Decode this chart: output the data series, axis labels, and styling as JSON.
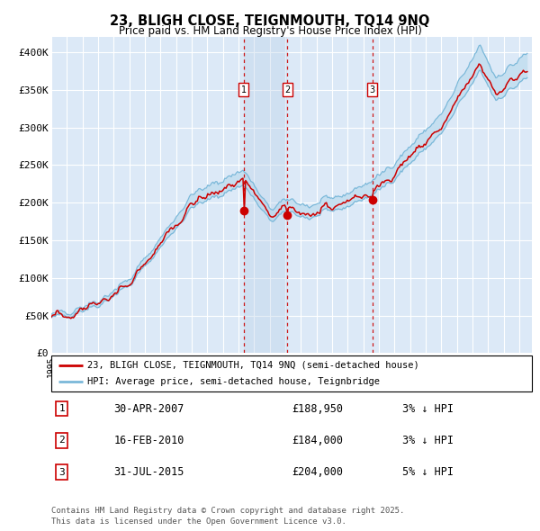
{
  "title1": "23, BLIGH CLOSE, TEIGNMOUTH, TQ14 9NQ",
  "title2": "Price paid vs. HM Land Registry's House Price Index (HPI)",
  "background_color": "#dce9f7",
  "grid_color": "#ffffff",
  "hpi_color": "#7ab8d9",
  "hpi_band_color": "#c5dff0",
  "price_color": "#cc0000",
  "ylim": [
    0,
    420000
  ],
  "yticks": [
    0,
    50000,
    100000,
    150000,
    200000,
    250000,
    300000,
    350000,
    400000
  ],
  "ytick_labels": [
    "£0",
    "£50K",
    "£100K",
    "£150K",
    "£200K",
    "£250K",
    "£300K",
    "£350K",
    "£400K"
  ],
  "sale_year_floats": [
    2007.33,
    2010.12,
    2015.58
  ],
  "sale_prices": [
    188950,
    184000,
    204000
  ],
  "sale_labels": [
    "1",
    "2",
    "3"
  ],
  "sale_date_strs": [
    "30-APR-2007",
    "16-FEB-2010",
    "31-JUL-2015"
  ],
  "sale_price_strs": [
    "£188,950",
    "£184,000",
    "£204,000"
  ],
  "sale_pct_strs": [
    "3% ↓ HPI",
    "3% ↓ HPI",
    "5% ↓ HPI"
  ],
  "legend_line1": "23, BLIGH CLOSE, TEIGNMOUTH, TQ14 9NQ (semi-detached house)",
  "legend_line2": "HPI: Average price, semi-detached house, Teignbridge",
  "footer1": "Contains HM Land Registry data © Crown copyright and database right 2025.",
  "footer2": "This data is licensed under the Open Government Licence v3.0."
}
